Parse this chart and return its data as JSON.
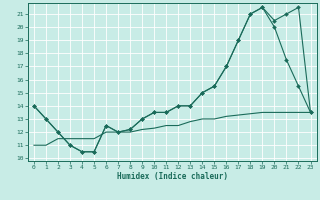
{
  "xlabel": "Humidex (Indice chaleur)",
  "xlim": [
    -0.5,
    23.5
  ],
  "ylim": [
    9.8,
    21.8
  ],
  "yticks": [
    10,
    11,
    12,
    13,
    14,
    15,
    16,
    17,
    18,
    19,
    20,
    21
  ],
  "xticks": [
    0,
    1,
    2,
    3,
    4,
    5,
    6,
    7,
    8,
    9,
    10,
    11,
    12,
    13,
    14,
    15,
    16,
    17,
    18,
    19,
    20,
    21,
    22,
    23
  ],
  "bg_color": "#c8ece6",
  "grid_color": "#ffffff",
  "line_color": "#1a6b5a",
  "series1_x": [
    0,
    1,
    2,
    3,
    4,
    5,
    6,
    7,
    8,
    9,
    10,
    11,
    12,
    13,
    14,
    15,
    16,
    17,
    18,
    19,
    20,
    21,
    22,
    23
  ],
  "series1_y": [
    14.0,
    13.0,
    12.0,
    11.0,
    10.5,
    10.5,
    12.5,
    12.0,
    12.2,
    13.0,
    13.5,
    13.5,
    14.0,
    14.0,
    15.0,
    15.5,
    17.0,
    19.0,
    21.0,
    21.5,
    20.0,
    17.5,
    15.5,
    13.5
  ],
  "series2_x": [
    0,
    1,
    2,
    3,
    4,
    5,
    6,
    7,
    8,
    9,
    10,
    11,
    12,
    13,
    14,
    15,
    16,
    17,
    18,
    19,
    20,
    21,
    22,
    23
  ],
  "series2_y": [
    14.0,
    13.0,
    12.0,
    11.0,
    10.5,
    10.5,
    12.5,
    12.0,
    12.2,
    13.0,
    13.5,
    13.5,
    14.0,
    14.0,
    15.0,
    15.5,
    17.0,
    19.0,
    21.0,
    21.5,
    20.5,
    21.0,
    21.5,
    13.5
  ],
  "series3_x": [
    0,
    1,
    2,
    3,
    4,
    5,
    6,
    7,
    8,
    9,
    10,
    11,
    12,
    13,
    14,
    15,
    16,
    17,
    18,
    19,
    20,
    21,
    22,
    23
  ],
  "series3_y": [
    11.0,
    11.0,
    11.5,
    11.5,
    11.5,
    11.5,
    12.0,
    12.0,
    12.0,
    12.2,
    12.3,
    12.5,
    12.5,
    12.8,
    13.0,
    13.0,
    13.2,
    13.3,
    13.4,
    13.5,
    13.5,
    13.5,
    13.5,
    13.5
  ]
}
